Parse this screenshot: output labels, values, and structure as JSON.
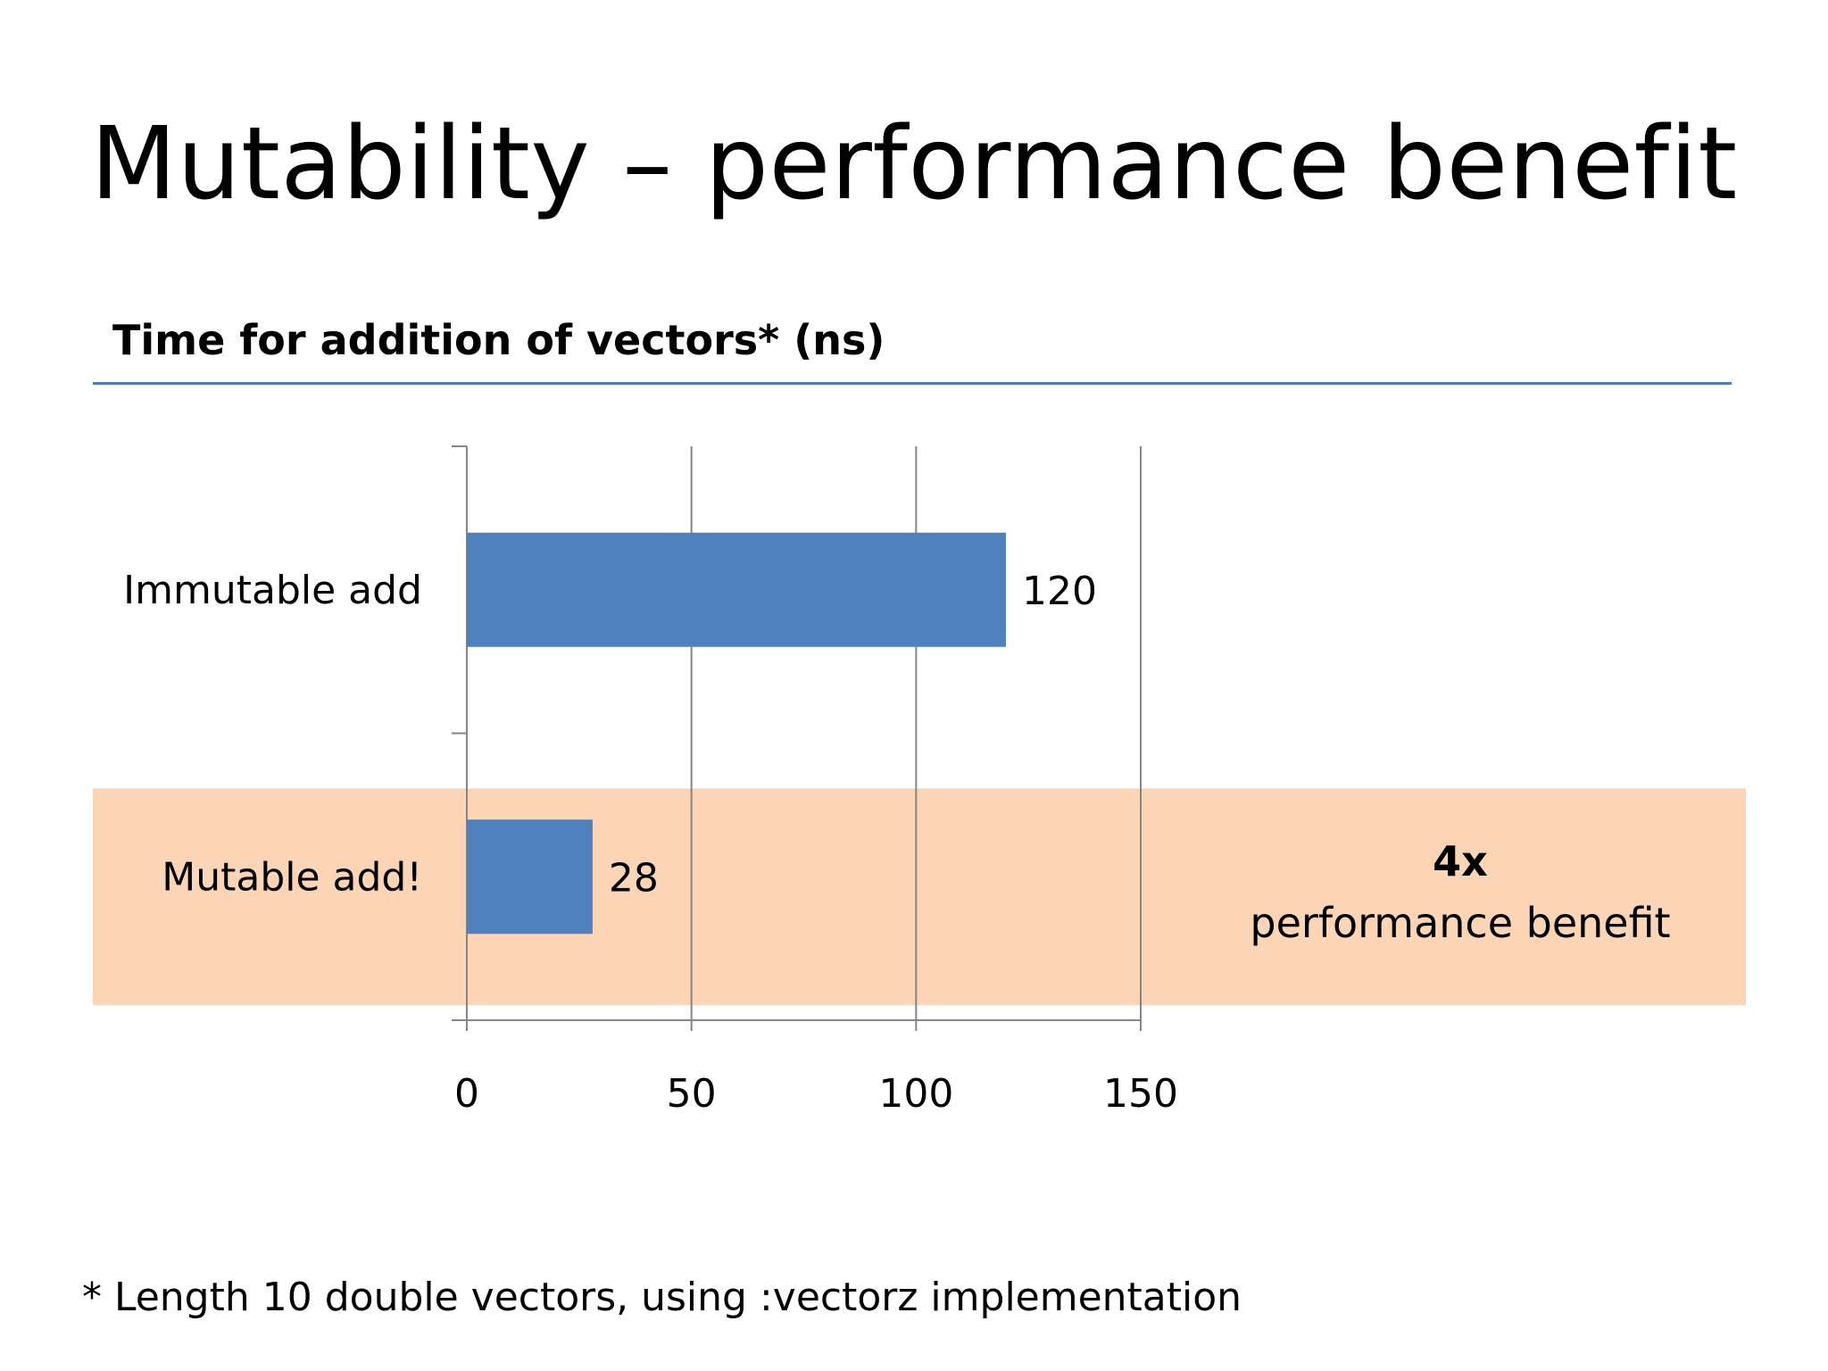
{
  "slide": {
    "title": "Mutability – performance benefit",
    "footnote": "* Length 10 double vectors, using :vectorz implementation"
  },
  "colors": {
    "bar": "#4f81bd",
    "highlight": "#fbd5b5",
    "grid": "#868686",
    "rule": "#4a7ebb"
  },
  "chart_data": {
    "type": "bar",
    "orientation": "horizontal",
    "title": "Time for addition of vectors* (ns)",
    "categories": [
      "Immutable add",
      "Mutable add!"
    ],
    "values": [
      120,
      28
    ],
    "data_labels": [
      "120",
      "28"
    ],
    "xlim": [
      0,
      150
    ],
    "x_ticks": [
      0,
      50,
      100,
      150
    ],
    "x_tick_labels": [
      "0",
      "50",
      "100",
      "150"
    ],
    "grid": true,
    "legend": "none",
    "highlighted_category": "Mutable add!",
    "annotation": {
      "emphasis": "4x",
      "text": "performance benefit"
    }
  }
}
